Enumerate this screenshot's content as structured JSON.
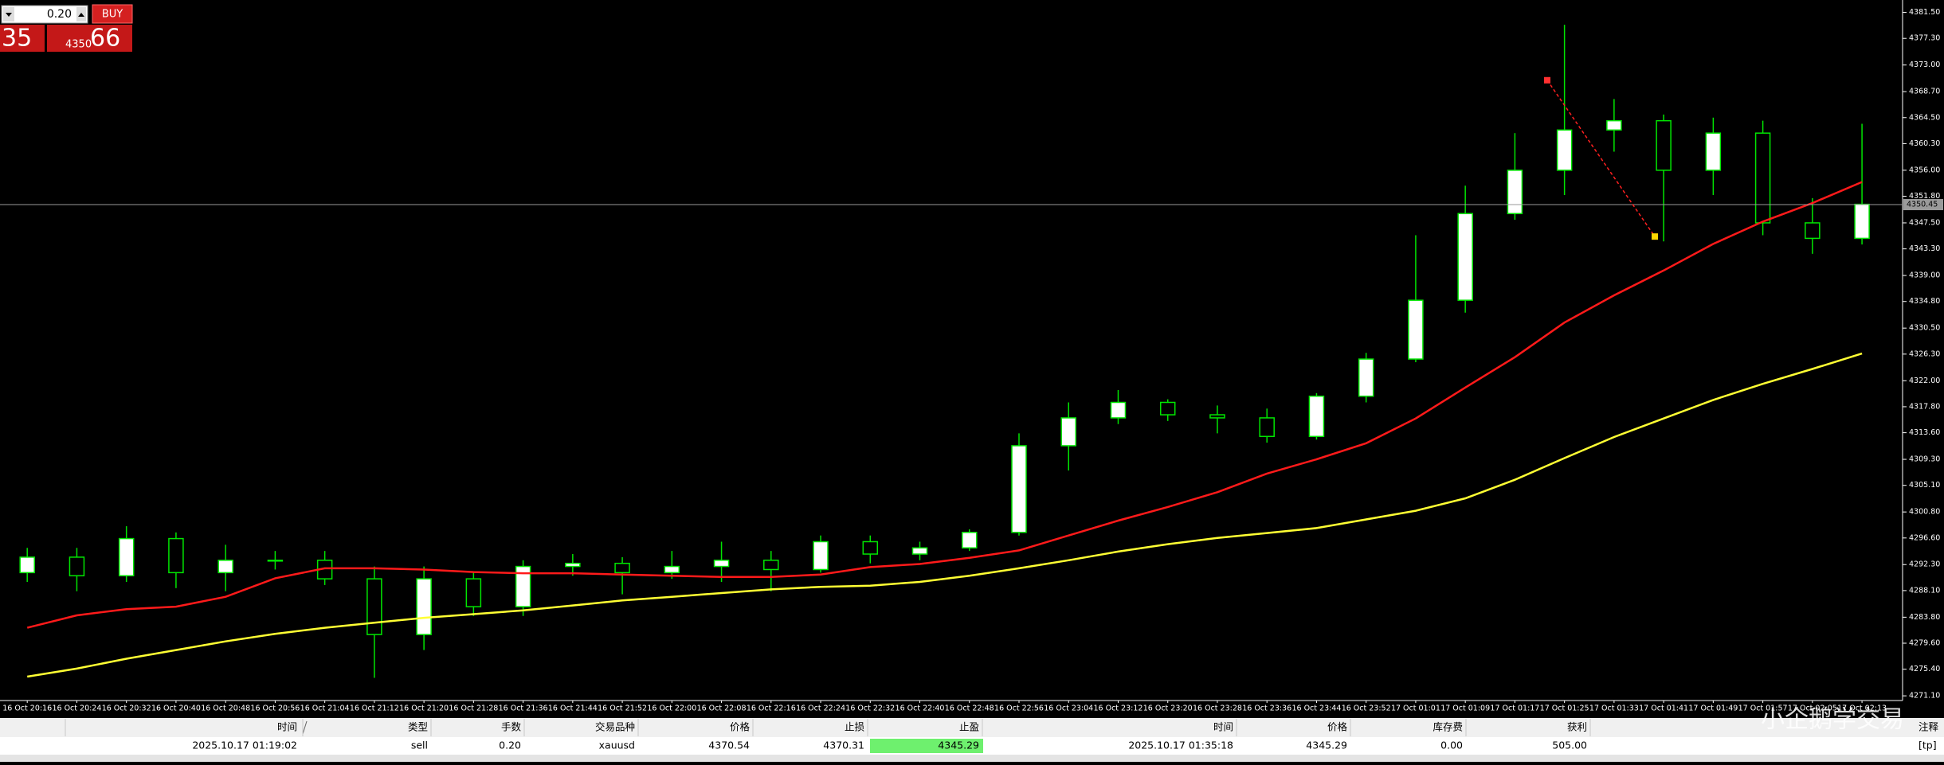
{
  "trade_panel": {
    "lots": "0.20",
    "buy_label": "BUY",
    "sell_price": "35",
    "buy_price_small": "4350",
    "buy_price_big": "66"
  },
  "chart_data": {
    "type": "candlestick",
    "categories": [
      "16 Oct 20:16",
      "16 Oct 20:24",
      "16 Oct 20:32",
      "16 Oct 20:40",
      "16 Oct 20:48",
      "16 Oct 20:56",
      "16 Oct 21:04",
      "16 Oct 21:12",
      "16 Oct 21:20",
      "16 Oct 21:28",
      "16 Oct 21:36",
      "16 Oct 21:44",
      "16 Oct 21:52",
      "16 Oct 22:00",
      "16 Oct 22:08",
      "16 Oct 22:16",
      "16 Oct 22:24",
      "16 Oct 22:32",
      "16 Oct 22:40",
      "16 Oct 22:48",
      "16 Oct 22:56",
      "16 Oct 23:04",
      "16 Oct 23:12",
      "16 Oct 23:20",
      "16 Oct 23:28",
      "16 Oct 23:36",
      "16 Oct 23:44",
      "16 Oct 23:52",
      "17 Oct 01:01",
      "17 Oct 01:09",
      "17 Oct 01:17",
      "17 Oct 01:25",
      "17 Oct 01:33",
      "17 Oct 01:41",
      "17 Oct 01:49",
      "17 Oct 01:57",
      "17 Oct 02:05",
      "17 Oct 02:13"
    ],
    "open": [
      4291.0,
      4293.5,
      4290.5,
      4296.5,
      4291.0,
      4293.0,
      4293.0,
      4290.0,
      4281.0,
      4290.0,
      4285.5,
      4292.0,
      4292.5,
      4291.0,
      4292.0,
      4293.0,
      4291.5,
      4296.0,
      4294.0,
      4295.0,
      4297.5,
      4311.5,
      4316.0,
      4318.5,
      4316.5,
      4316.0,
      4313.0,
      4319.5,
      4325.5,
      4335.0,
      4349.0,
      4356.0,
      4362.5,
      4364.0,
      4356.0,
      4362.0,
      4347.5,
      4345.0
    ],
    "high": [
      4295.0,
      4295.0,
      4298.5,
      4297.5,
      4295.5,
      4294.5,
      4294.5,
      4292.0,
      4292.0,
      4291.0,
      4293.0,
      4294.0,
      4293.5,
      4294.5,
      4296.0,
      4294.5,
      4297.0,
      4297.0,
      4296.0,
      4298.0,
      4313.5,
      4318.5,
      4320.5,
      4319.0,
      4318.0,
      4317.5,
      4320.0,
      4326.5,
      4345.5,
      4353.5,
      4362.0,
      4379.5,
      4367.5,
      4365.0,
      4364.5,
      4364.0,
      4351.5,
      4363.5
    ],
    "low": [
      4289.5,
      4288.0,
      4289.5,
      4288.5,
      4288.0,
      4291.5,
      4289.0,
      4274.0,
      4278.5,
      4284.0,
      4284.0,
      4290.5,
      4287.5,
      4290.0,
      4289.5,
      4288.0,
      4291.0,
      4292.5,
      4293.0,
      4294.5,
      4297.0,
      4307.5,
      4315.0,
      4315.5,
      4313.5,
      4312.0,
      4312.5,
      4318.5,
      4325.0,
      4333.0,
      4348.0,
      4352.0,
      4359.0,
      4344.5,
      4352.0,
      4345.5,
      4342.5,
      4344.0
    ],
    "close": [
      4293.5,
      4290.5,
      4296.5,
      4291.0,
      4293.0,
      4293.0,
      4290.0,
      4281.0,
      4290.0,
      4285.5,
      4292.0,
      4292.5,
      4291.0,
      4292.0,
      4293.0,
      4291.5,
      4296.0,
      4294.0,
      4295.0,
      4297.5,
      4311.5,
      4316.0,
      4318.5,
      4316.5,
      4316.0,
      4313.0,
      4319.5,
      4325.5,
      4335.0,
      4349.0,
      4356.0,
      4362.5,
      4364.0,
      4356.0,
      4362.0,
      4347.5,
      4345.0,
      4350.5
    ],
    "moving_averages": [
      {
        "color": "#ff1a1a",
        "values": [
          4282.1,
          4284.1,
          4285.1,
          4285.5,
          4287.1,
          4290.1,
          4291.7,
          4291.7,
          4291.5,
          4291.1,
          4290.9,
          4290.9,
          4290.7,
          4290.5,
          4290.3,
          4290.3,
          4290.7,
          4291.9,
          4292.4,
          4293.4,
          4294.6,
          4297.0,
          4299.4,
          4301.6,
          4304.0,
          4307.0,
          4309.3,
          4311.9,
          4315.9,
          4320.9,
          4325.8,
          4331.4,
          4335.8,
          4339.8,
          4344.1,
          4347.7,
          4350.7,
          4354.1
        ]
      },
      {
        "color": "#ffff33",
        "values": [
          4274.2,
          4275.5,
          4277.1,
          4278.5,
          4279.9,
          4281.1,
          4282.1,
          4282.9,
          4283.7,
          4284.3,
          4284.9,
          4285.7,
          4286.5,
          4287.1,
          4287.7,
          4288.3,
          4288.7,
          4288.9,
          4289.5,
          4290.5,
          4291.7,
          4293.0,
          4294.4,
          4295.6,
          4296.6,
          4297.4,
          4298.2,
          4299.6,
          4301.0,
          4303.0,
          4306.0,
          4309.5,
          4312.9,
          4315.9,
          4318.9,
          4321.5,
          4323.9,
          4326.4
        ]
      }
    ],
    "bull_fill": "#ffffff",
    "bear_fill": "#000000",
    "wick_color": "#00e600",
    "ylim": [
      4270.6,
      4383.5
    ],
    "yticks": [
      {
        "value": 4381.5,
        "label": "4381.50"
      },
      {
        "value": 4377.3,
        "label": "4377.30"
      },
      {
        "value": 4373.0,
        "label": "4373.00"
      },
      {
        "value": 4368.7,
        "label": "4368.70"
      },
      {
        "value": 4364.5,
        "label": "4364.50"
      },
      {
        "value": 4360.3,
        "label": "4360.30"
      },
      {
        "value": 4356.0,
        "label": "4356.00"
      },
      {
        "value": 4351.8,
        "label": "4351.80"
      },
      {
        "value": 4347.5,
        "label": "4347.50"
      },
      {
        "value": 4343.3,
        "label": "4343.30"
      },
      {
        "value": 4339.0,
        "label": "4339.00"
      },
      {
        "value": 4334.8,
        "label": "4334.80"
      },
      {
        "value": 4330.5,
        "label": "4330.50"
      },
      {
        "value": 4326.3,
        "label": "4326.30"
      },
      {
        "value": 4322.0,
        "label": "4322.00"
      },
      {
        "value": 4317.8,
        "label": "4317.80"
      },
      {
        "value": 4313.6,
        "label": "4313.60"
      },
      {
        "value": 4309.3,
        "label": "4309.30"
      },
      {
        "value": 4305.1,
        "label": "4305.10"
      },
      {
        "value": 4300.8,
        "label": "4300.80"
      },
      {
        "value": 4296.6,
        "label": "4296.60"
      },
      {
        "value": 4292.3,
        "label": "4292.30"
      },
      {
        "value": 4288.1,
        "label": "4288.10"
      },
      {
        "value": 4283.8,
        "label": "4283.80"
      },
      {
        "value": 4279.6,
        "label": "4279.60"
      },
      {
        "value": 4275.4,
        "label": "4275.40"
      },
      {
        "value": 4271.1,
        "label": "4271.10"
      }
    ],
    "price_line": {
      "value": 4350.45,
      "label": "4350.45"
    }
  },
  "table": {
    "headers": [
      "时间",
      "类型",
      "手数",
      "交易品种",
      "价格",
      "止损",
      "止盈",
      "时间",
      "价格",
      "库存费",
      "获利",
      "注释"
    ],
    "rows": [
      [
        "2025.10.17 01:19:02",
        "sell",
        "0.20",
        "xauusd",
        "4370.54",
        "4370.31",
        "4345.29",
        "2025.10.17 01:35:18",
        "4345.29",
        "0.00",
        "505.00",
        "[tp]"
      ]
    ]
  },
  "watermark": "小企鹅学交易"
}
